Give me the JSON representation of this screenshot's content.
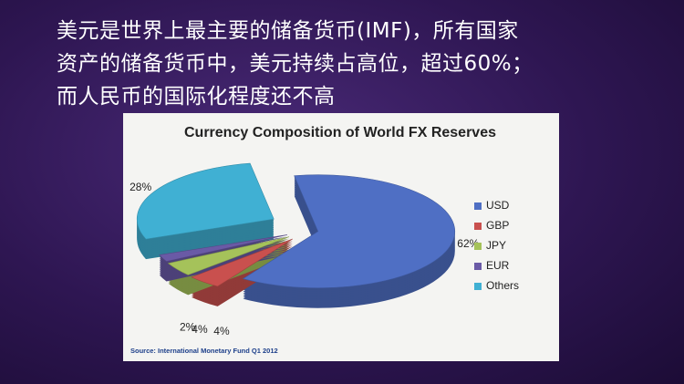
{
  "slide": {
    "lines": [
      "美元是世界上最主要的储备货币(IMF)，所有国家",
      "资产的储备货币中，美元持续占高位，超过60%；",
      "而人民币的国际化程度还不高"
    ]
  },
  "chart_data": {
    "type": "pie",
    "title": "Currency Composition of World FX Reserves",
    "source": "Source: International Monetary Fund Q1 2012",
    "categories": [
      "USD",
      "GBP",
      "JPY",
      "EUR",
      "Others"
    ],
    "values": [
      62,
      4,
      4,
      2,
      28
    ],
    "value_labels": [
      "62%",
      "4%",
      "4%",
      "2%",
      "28%"
    ],
    "colors": [
      "#4f6fc4",
      "#c9504e",
      "#a5c25a",
      "#6a5aa6",
      "#40b0d3"
    ],
    "legend": "right"
  }
}
